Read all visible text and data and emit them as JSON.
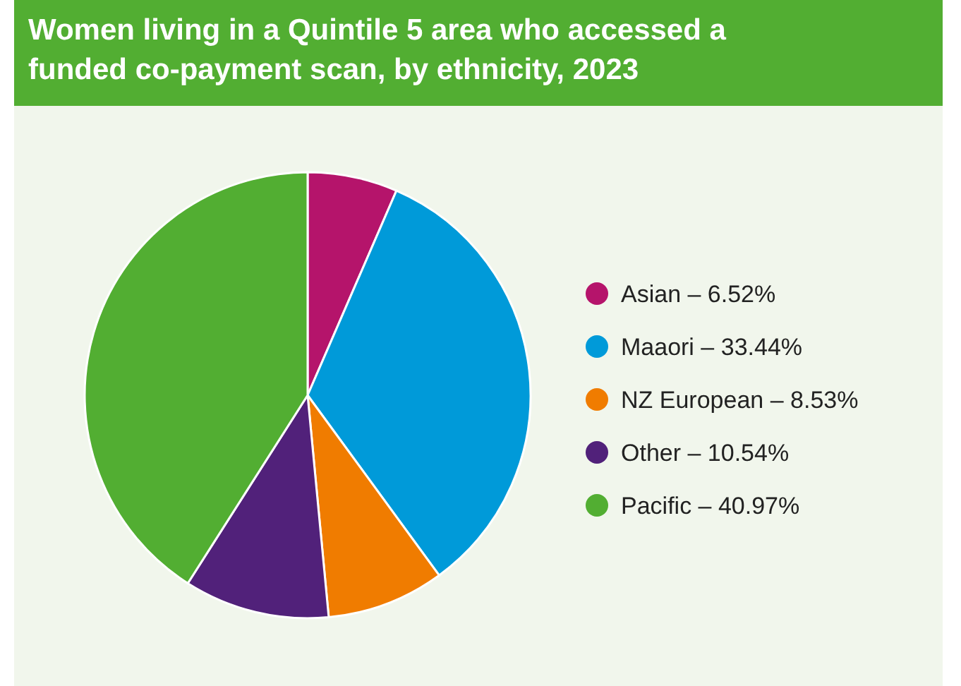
{
  "chart_data": {
    "type": "pie",
    "title": "Women living in a Quintile 5 area who accessed a funded co-payment scan, by ethnicity, 2023",
    "categories": [
      "Asian",
      "Maaori",
      "NZ European",
      "Other",
      "Pacific"
    ],
    "values": [
      6.52,
      33.44,
      8.53,
      10.54,
      40.97
    ],
    "value_labels": [
      "6.52%",
      "33.44%",
      "8.53%",
      "10.54%",
      "40.97%"
    ],
    "colors": [
      "#b5146b",
      "#009ad9",
      "#f07c00",
      "#51217a",
      "#52ae32"
    ],
    "legend": "right"
  }
}
